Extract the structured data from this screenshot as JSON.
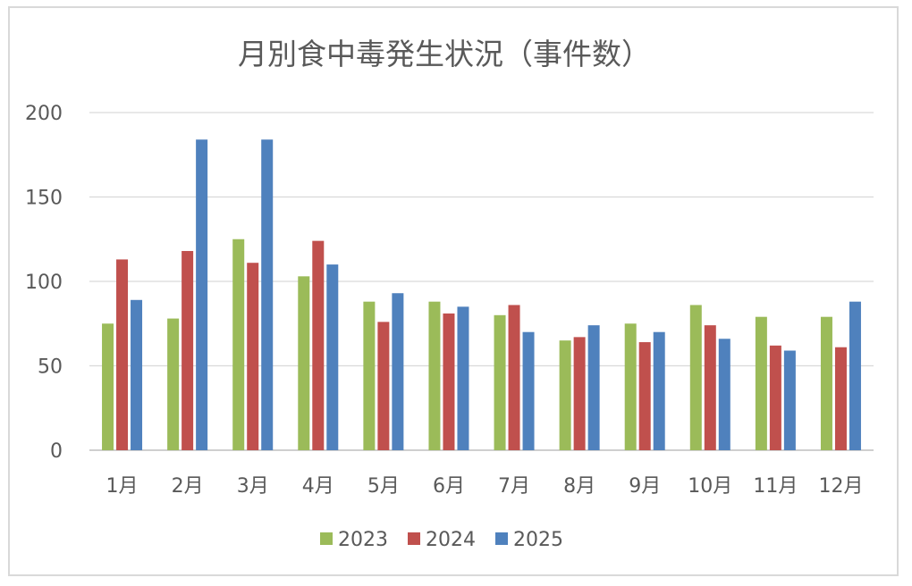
{
  "chart_data": {
    "type": "bar",
    "title": "月別食中毒発生状況（事件数）",
    "xlabel": "",
    "ylabel": "",
    "categories": [
      "1月",
      "2月",
      "3月",
      "4月",
      "5月",
      "6月",
      "7月",
      "8月",
      "9月",
      "10月",
      "11月",
      "12月"
    ],
    "series": [
      {
        "name": "2023",
        "color": "#9bbb59",
        "values": [
          75,
          78,
          125,
          103,
          88,
          88,
          80,
          65,
          75,
          86,
          79,
          79
        ]
      },
      {
        "name": "2024",
        "color": "#c0504d",
        "values": [
          113,
          118,
          111,
          124,
          76,
          81,
          86,
          67,
          64,
          74,
          62,
          61
        ]
      },
      {
        "name": "2025",
        "color": "#4f81bd",
        "values": [
          89,
          184,
          184,
          110,
          93,
          85,
          70,
          74,
          70,
          66,
          59,
          88
        ]
      }
    ],
    "ylim": [
      0,
      200
    ],
    "yticks": [
      0,
      50,
      100,
      150,
      200
    ],
    "grid": true,
    "legend_position": "bottom"
  }
}
